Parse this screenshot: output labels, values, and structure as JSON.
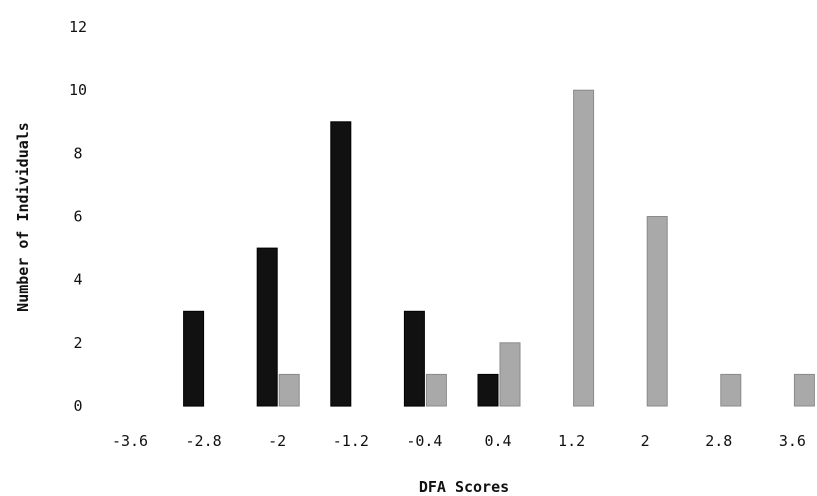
{
  "chart_data": {
    "type": "bar",
    "title": "",
    "xlabel": "DFA Scores",
    "ylabel": "Number of Individuals",
    "ylim": [
      0,
      12
    ],
    "yticks": [
      "0",
      "2",
      "4",
      "6",
      "8",
      "10",
      "12"
    ],
    "categories": [
      "-3.6",
      "-2.8",
      "-2",
      "-1.2",
      "-0.4",
      "0.4",
      "1.2",
      "2",
      "2.8",
      "3.6"
    ],
    "series": [
      {
        "color": "#111111",
        "values": [
          0,
          3,
          5,
          9,
          3,
          1,
          0,
          0,
          0,
          0
        ]
      },
      {
        "color": "#a9a9a9",
        "values": [
          0,
          0,
          1,
          0,
          1,
          2,
          10,
          6,
          1,
          1
        ]
      }
    ],
    "grid": false,
    "legend": "none"
  }
}
